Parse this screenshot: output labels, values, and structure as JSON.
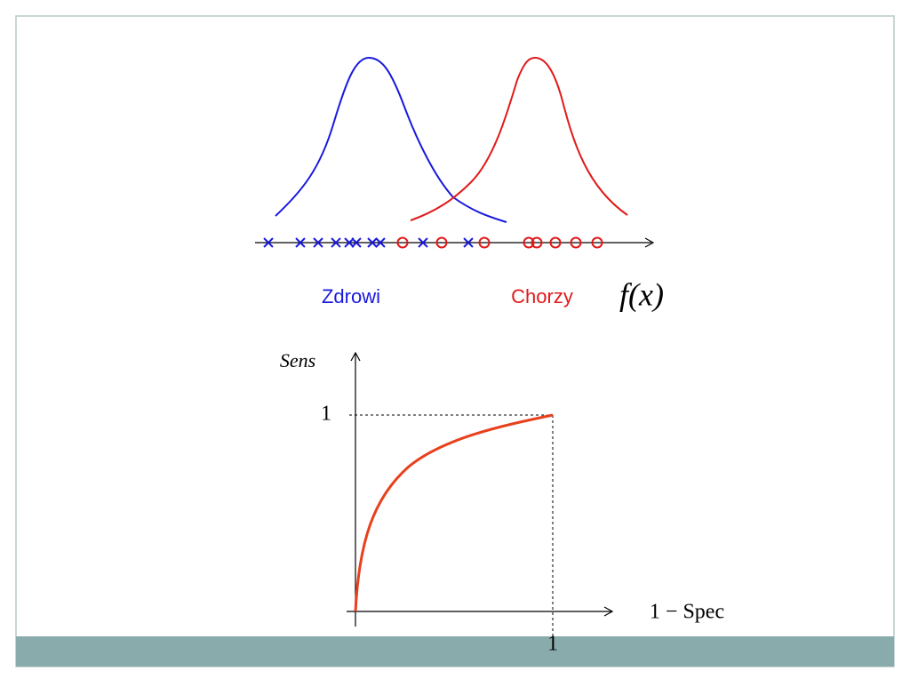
{
  "distributions": {
    "healthy_label": "Zdrowi",
    "sick_label": "Chorzy",
    "function_label": "f(x)"
  },
  "roc": {
    "y_axis_label": "Sens",
    "y_one_label": "1",
    "x_axis_label": "1 − Spec",
    "x_one_label": "1"
  }
}
